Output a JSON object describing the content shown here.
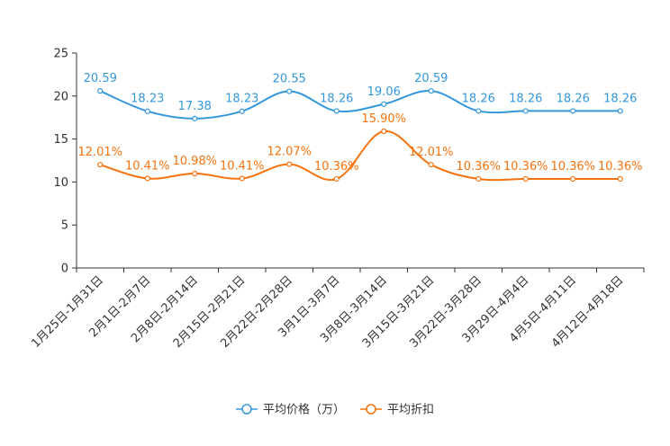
{
  "chart_data": {
    "type": "line",
    "categories": [
      "1月25日-1月31日",
      "2月1日-2月7日",
      "2月8日-2月14日",
      "2月15日-2月21日",
      "2月22日-2月28日",
      "3月1日-3月7日",
      "3月8日-3月14日",
      "3月15日-3月21日",
      "3月22日-3月28日",
      "3月29日-4月4日",
      "4月5日-4月11日",
      "4月12日-4月18日"
    ],
    "series": [
      {
        "name": "平均价格（万）",
        "color": "#3398db",
        "values": [
          20.59,
          18.23,
          17.38,
          18.23,
          20.55,
          18.26,
          19.06,
          20.59,
          18.26,
          18.26,
          18.26,
          18.26
        ],
        "labels": [
          "20.59",
          "18.23",
          "17.38",
          "18.23",
          "20.55",
          "18.26",
          "19.06",
          "20.59",
          "18.26",
          "18.26",
          "18.26",
          "18.26"
        ]
      },
      {
        "name": "平均折扣",
        "color": "#f5730f",
        "values": [
          12.01,
          10.41,
          10.98,
          10.41,
          12.07,
          10.36,
          15.9,
          12.01,
          10.36,
          10.36,
          10.36,
          10.36
        ],
        "labels": [
          "12.01%",
          "10.41%",
          "10.98%",
          "10.41%",
          "12.07%",
          "10.36%",
          "15.90%",
          "12.01%",
          "10.36%",
          "10.36%",
          "10.36%",
          "10.36%"
        ]
      }
    ],
    "yticks": [
      "0",
      "5",
      "10",
      "15",
      "20",
      "25"
    ],
    "ylim": [
      0,
      25
    ],
    "title": "",
    "xlabel": "",
    "ylabel": "",
    "legend": "bottom-center"
  }
}
